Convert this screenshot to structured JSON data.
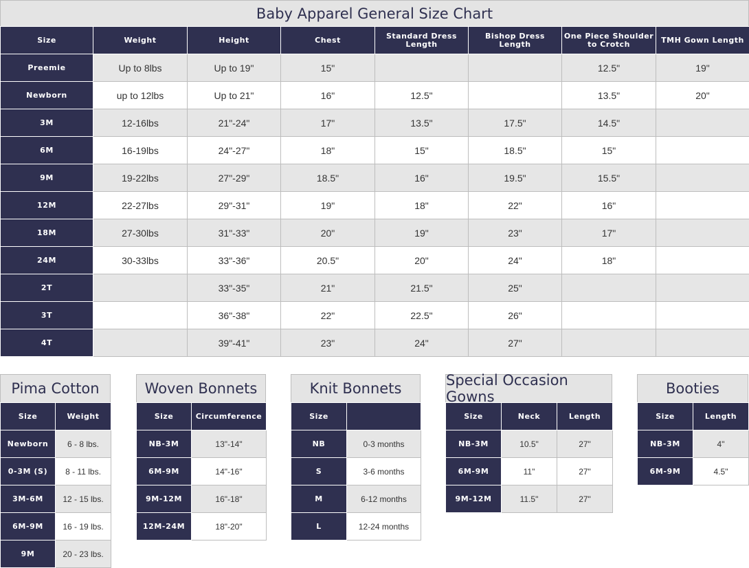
{
  "main": {
    "title": "Baby Apparel General Size Chart",
    "headers": [
      "Size",
      "Weight",
      "Height",
      "Chest",
      "Standard Dress Length",
      "Bishop Dress Length",
      "One Piece Shoulder to Crotch",
      "TMH Gown Length"
    ],
    "rows": [
      [
        "Preemie",
        "Up to 8lbs",
        "Up to 19\"",
        "15\"",
        "",
        "",
        "12.5\"",
        "19\""
      ],
      [
        "Newborn",
        "up to 12lbs",
        "Up to 21\"",
        "16\"",
        "12.5\"",
        "",
        "13.5\"",
        "20\""
      ],
      [
        "3M",
        "12-16lbs",
        "21\"-24\"",
        "17\"",
        "13.5\"",
        "17.5\"",
        "14.5\"",
        ""
      ],
      [
        "6M",
        "16-19lbs",
        "24\"-27\"",
        "18\"",
        "15\"",
        "18.5\"",
        "15\"",
        ""
      ],
      [
        "9M",
        "19-22lbs",
        "27\"-29\"",
        "18.5\"",
        "16\"",
        "19.5\"",
        "15.5\"",
        ""
      ],
      [
        "12M",
        "22-27lbs",
        "29\"-31\"",
        "19\"",
        "18\"",
        "22\"",
        "16\"",
        ""
      ],
      [
        "18M",
        "27-30lbs",
        "31\"-33\"",
        "20\"",
        "19\"",
        "23\"",
        "17\"",
        ""
      ],
      [
        "24M",
        "30-33lbs",
        "33\"-36\"",
        "20.5\"",
        "20\"",
        "24\"",
        "18\"",
        ""
      ],
      [
        "2T",
        "",
        "33\"-35\"",
        "21\"",
        "21.5\"",
        "25\"",
        "",
        ""
      ],
      [
        "3T",
        "",
        "36\"-38\"",
        "22\"",
        "22.5\"",
        "26\"",
        "",
        ""
      ],
      [
        "4T",
        "",
        "39\"-41\"",
        "23\"",
        "24\"",
        "27\"",
        "",
        ""
      ]
    ]
  },
  "pima": {
    "title": "Pima Cotton",
    "headers": [
      "Size",
      "Weight"
    ],
    "rows": [
      [
        "Newborn",
        "6 - 8 lbs."
      ],
      [
        "0-3M (S)",
        "8 - 11 lbs."
      ],
      [
        "3M-6M",
        "12 - 15 lbs."
      ],
      [
        "6M-9M",
        "16 - 19 lbs."
      ],
      [
        "9M",
        "20 - 23 lbs."
      ]
    ]
  },
  "woven": {
    "title": "Woven Bonnets",
    "headers": [
      "Size",
      "Circumference"
    ],
    "rows": [
      [
        "NB-3M",
        "13\"-14\""
      ],
      [
        "6M-9M",
        "14\"-16\""
      ],
      [
        "9M-12M",
        "16\"-18\""
      ],
      [
        "12M-24M",
        "18\"-20\""
      ]
    ]
  },
  "knit": {
    "title": "Knit Bonnets",
    "headers": [
      "Size",
      ""
    ],
    "rows": [
      [
        "NB",
        "0-3 months"
      ],
      [
        "S",
        "3-6 months"
      ],
      [
        "M",
        "6-12 months"
      ],
      [
        "L",
        "12-24 months"
      ]
    ]
  },
  "gowns": {
    "title": "Special Occasion Gowns",
    "headers": [
      "Size",
      "Neck",
      "Length"
    ],
    "rows": [
      [
        "NB-3M",
        "10.5\"",
        "27\""
      ],
      [
        "6M-9M",
        "11\"",
        "27\""
      ],
      [
        "9M-12M",
        "11.5\"",
        "27\""
      ]
    ]
  },
  "booties": {
    "title": "Booties",
    "headers": [
      "Size",
      "Length"
    ],
    "rows": [
      [
        "NB-3M",
        "4\""
      ],
      [
        "6M-9M",
        "4.5\""
      ]
    ]
  }
}
